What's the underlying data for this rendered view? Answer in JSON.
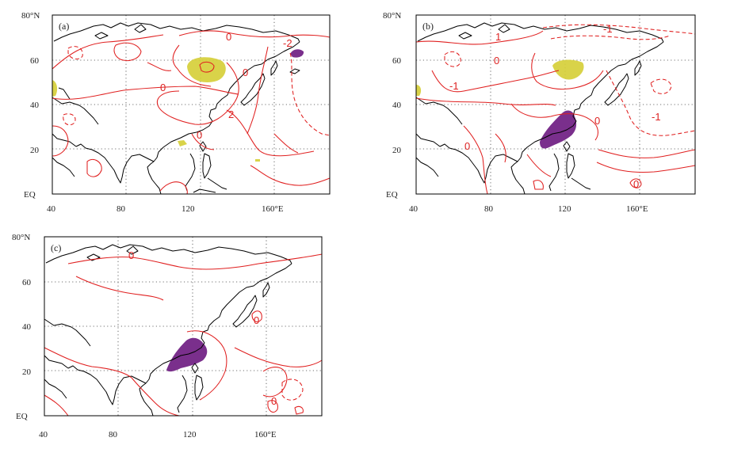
{
  "panels": [
    {
      "label": "(a)",
      "contour_labels": [
        "0",
        "-2",
        "0",
        "2",
        "0",
        "0"
      ]
    },
    {
      "label": "(b)",
      "contour_labels": [
        "1",
        "-1",
        "0",
        "-1",
        "0",
        "-1",
        "0",
        "0"
      ]
    },
    {
      "label": "(c)",
      "contour_labels": [
        "0",
        "0",
        "0"
      ]
    }
  ],
  "axes": {
    "lat_labels": [
      "80°N",
      "60",
      "40",
      "20",
      "EQ"
    ],
    "lon_labels": [
      "40",
      "80",
      "120",
      "160°E"
    ]
  },
  "colors": {
    "contour": "#e02020",
    "positive_shading": "#d6cf3a",
    "negative_shading": "#7a2f8c"
  }
}
